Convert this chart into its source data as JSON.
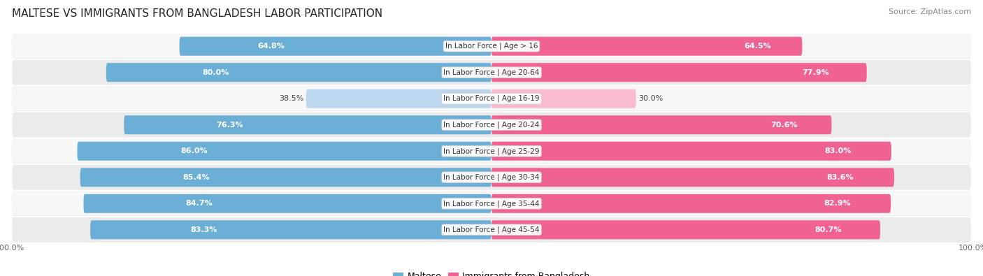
{
  "title": "MALTESE VS IMMIGRANTS FROM BANGLADESH LABOR PARTICIPATION",
  "source": "Source: ZipAtlas.com",
  "categories": [
    "In Labor Force | Age > 16",
    "In Labor Force | Age 20-64",
    "In Labor Force | Age 16-19",
    "In Labor Force | Age 20-24",
    "In Labor Force | Age 25-29",
    "In Labor Force | Age 30-34",
    "In Labor Force | Age 35-44",
    "In Labor Force | Age 45-54"
  ],
  "maltese_values": [
    64.8,
    80.0,
    38.5,
    76.3,
    86.0,
    85.4,
    84.7,
    83.3
  ],
  "immigrant_values": [
    64.5,
    77.9,
    30.0,
    70.6,
    83.0,
    83.6,
    82.9,
    80.7
  ],
  "maltese_color": "#6BAED6",
  "maltese_color_light": "#BDD7EE",
  "immigrant_color": "#F06292",
  "immigrant_color_light": "#F8BBD0",
  "row_bg_color_even": "#F7F7F7",
  "row_bg_color_odd": "#EBEBEB",
  "row_bg_shadow": "#DDDDDD",
  "title_fontsize": 11,
  "source_fontsize": 8,
  "legend_fontsize": 9,
  "axis_label_fontsize": 8,
  "bar_label_fontsize": 8,
  "cat_label_fontsize": 7.5,
  "legend_labels": [
    "Maltese",
    "Immigrants from Bangladesh"
  ]
}
